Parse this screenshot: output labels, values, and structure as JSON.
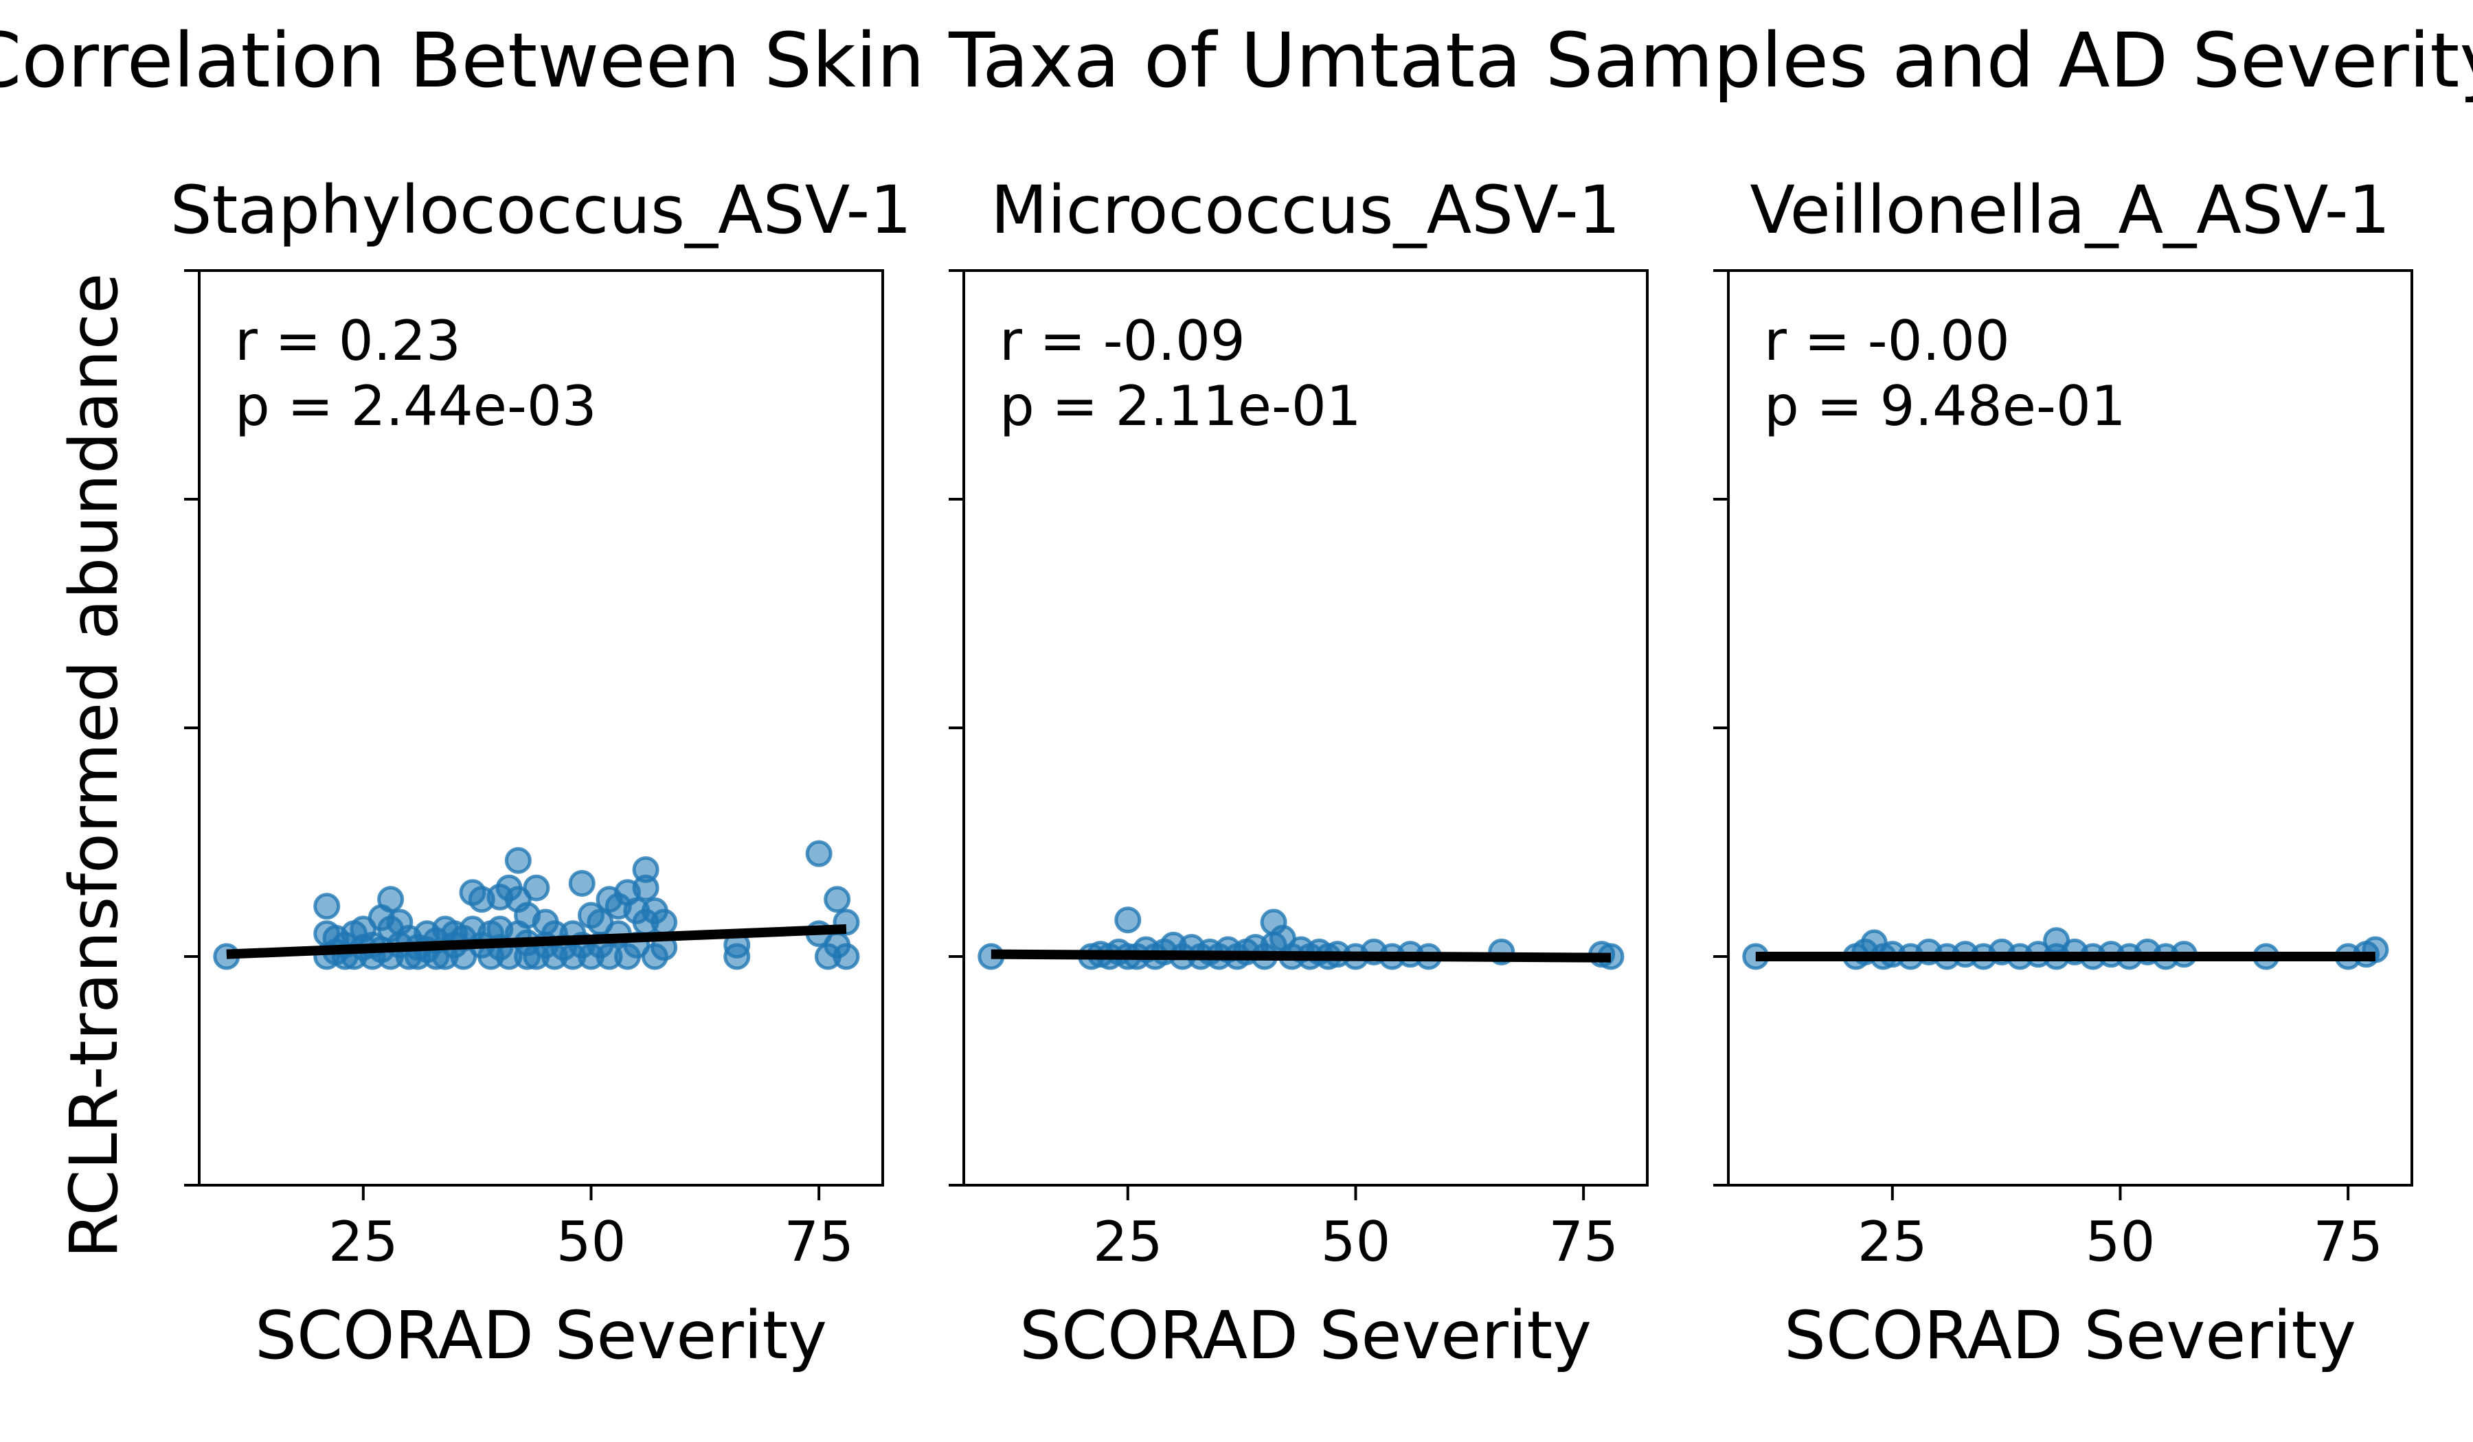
{
  "figure": {
    "title": "Correlation Between Skin Taxa of Umtata Samples and AD Severity",
    "ylabel": "RCLR-transformed abundance"
  },
  "colors": {
    "point_fill": "#1f77b4",
    "point_edge": "#1f77b4",
    "fit_line": "#000000",
    "axes": "#000000"
  },
  "chart_data": [
    {
      "type": "scatter",
      "title": "Staphylococcus_ASV-1",
      "xlabel": "SCORAD Severity",
      "ylabel": "RCLR-transformed abundance",
      "xlim": [
        7,
        82
      ],
      "ylim": [
        -1,
        3
      ],
      "xticks": [
        25,
        50,
        75
      ],
      "xtick_labels": [
        "25",
        "50",
        "75"
      ],
      "yticks": [
        -1,
        0,
        1,
        2,
        3
      ],
      "ytick_labels": [
        "",
        "",
        "",
        "",
        ""
      ],
      "grid": false,
      "annotation": [
        "r = 0.23",
        "p = 2.44e-03"
      ],
      "fit": {
        "x": [
          10,
          78
        ],
        "y": [
          0.01,
          0.12
        ]
      },
      "points": {
        "x": [
          10,
          21,
          21,
          21,
          22,
          22,
          23,
          23,
          24,
          24,
          25,
          25,
          26,
          26,
          27,
          27,
          28,
          28,
          28,
          29,
          29,
          30,
          30,
          31,
          31,
          32,
          32,
          33,
          33,
          34,
          34,
          35,
          35,
          36,
          36,
          37,
          37,
          38,
          38,
          39,
          39,
          40,
          40,
          40,
          41,
          41,
          42,
          42,
          42,
          43,
          43,
          43,
          44,
          44,
          45,
          45,
          46,
          46,
          47,
          48,
          48,
          49,
          49,
          50,
          50,
          51,
          51,
          52,
          52,
          53,
          53,
          54,
          54,
          55,
          55,
          56,
          56,
          56,
          57,
          57,
          58,
          58,
          66,
          66,
          75,
          75,
          76,
          77,
          77,
          78,
          78
        ],
        "y": [
          0.0,
          0.22,
          0.1,
          0.0,
          0.02,
          0.08,
          0.0,
          0.05,
          0.1,
          0.0,
          0.04,
          0.12,
          0.0,
          0.05,
          0.17,
          0.03,
          0.25,
          0.12,
          0.0,
          0.15,
          0.05,
          0.0,
          0.08,
          0.04,
          0.0,
          0.1,
          0.03,
          0.0,
          0.07,
          0.12,
          0.0,
          0.05,
          0.1,
          0.08,
          0.0,
          0.28,
          0.12,
          0.25,
          0.05,
          0.0,
          0.1,
          0.26,
          0.12,
          0.04,
          0.0,
          0.3,
          0.42,
          0.25,
          0.1,
          0.0,
          0.18,
          0.06,
          0.3,
          0.0,
          0.15,
          0.05,
          0.0,
          0.1,
          0.04,
          0.1,
          0.0,
          0.32,
          0.05,
          0.18,
          0.0,
          0.05,
          0.15,
          0.0,
          0.25,
          0.1,
          0.22,
          0.0,
          0.28,
          0.05,
          0.2,
          0.3,
          0.38,
          0.15,
          0.0,
          0.2,
          0.04,
          0.15,
          0.0,
          0.05,
          0.45,
          0.1,
          0.0,
          0.05,
          0.25,
          0.15,
          0.0
        ]
      }
    },
    {
      "type": "scatter",
      "title": "Micrococcus_ASV-1",
      "xlabel": "SCORAD Severity",
      "xlim": [
        7,
        82
      ],
      "ylim": [
        -1,
        3
      ],
      "xticks": [
        25,
        50,
        75
      ],
      "xtick_labels": [
        "25",
        "50",
        "75"
      ],
      "yticks": [
        -1,
        0,
        1,
        2,
        3
      ],
      "ytick_labels": [
        "",
        "",
        "",
        "",
        ""
      ],
      "grid": false,
      "annotation": [
        "r = -0.09",
        "p = 2.11e-01"
      ],
      "fit": {
        "x": [
          10,
          78
        ],
        "y": [
          0.01,
          -0.005
        ]
      },
      "points": {
        "x": [
          10,
          21,
          22,
          23,
          24,
          25,
          25,
          26,
          27,
          28,
          29,
          30,
          31,
          32,
          33,
          34,
          35,
          36,
          37,
          38,
          39,
          40,
          41,
          41,
          42,
          43,
          44,
          45,
          46,
          47,
          48,
          50,
          52,
          54,
          56,
          58,
          66,
          77,
          78
        ],
        "y": [
          0.0,
          0.0,
          0.01,
          0.0,
          0.02,
          0.16,
          0.0,
          0.0,
          0.03,
          0.0,
          0.02,
          0.05,
          0.0,
          0.04,
          0.0,
          0.02,
          0.0,
          0.03,
          0.0,
          0.02,
          0.04,
          0.0,
          0.15,
          0.05,
          0.08,
          0.0,
          0.03,
          0.0,
          0.02,
          0.0,
          0.01,
          0.0,
          0.02,
          0.0,
          0.01,
          0.0,
          0.02,
          0.01,
          0.0
        ]
      }
    },
    {
      "type": "scatter",
      "title": "Veillonella_A_ASV-1",
      "xlabel": "SCORAD Severity",
      "xlim": [
        7,
        82
      ],
      "ylim": [
        -1,
        3
      ],
      "xticks": [
        25,
        50,
        75
      ],
      "xtick_labels": [
        "25",
        "50",
        "75"
      ],
      "yticks": [
        -1,
        0,
        1,
        2,
        3
      ],
      "ytick_labels": [
        "",
        "",
        "",
        "",
        ""
      ],
      "grid": false,
      "annotation": [
        "r = -0.00",
        "p = 9.48e-01"
      ],
      "fit": {
        "x": [
          10,
          78
        ],
        "y": [
          0.0,
          0.0
        ]
      },
      "points": {
        "x": [
          10,
          21,
          22,
          23,
          24,
          25,
          27,
          29,
          31,
          33,
          35,
          37,
          39,
          41,
          43,
          43,
          45,
          47,
          49,
          51,
          53,
          55,
          57,
          66,
          75,
          77,
          78
        ],
        "y": [
          0.0,
          0.0,
          0.02,
          0.06,
          0.0,
          0.01,
          0.0,
          0.02,
          0.0,
          0.01,
          0.0,
          0.02,
          0.0,
          0.01,
          0.07,
          0.0,
          0.02,
          0.0,
          0.01,
          0.0,
          0.02,
          0.0,
          0.01,
          0.0,
          0.0,
          0.01,
          0.03
        ]
      }
    }
  ]
}
